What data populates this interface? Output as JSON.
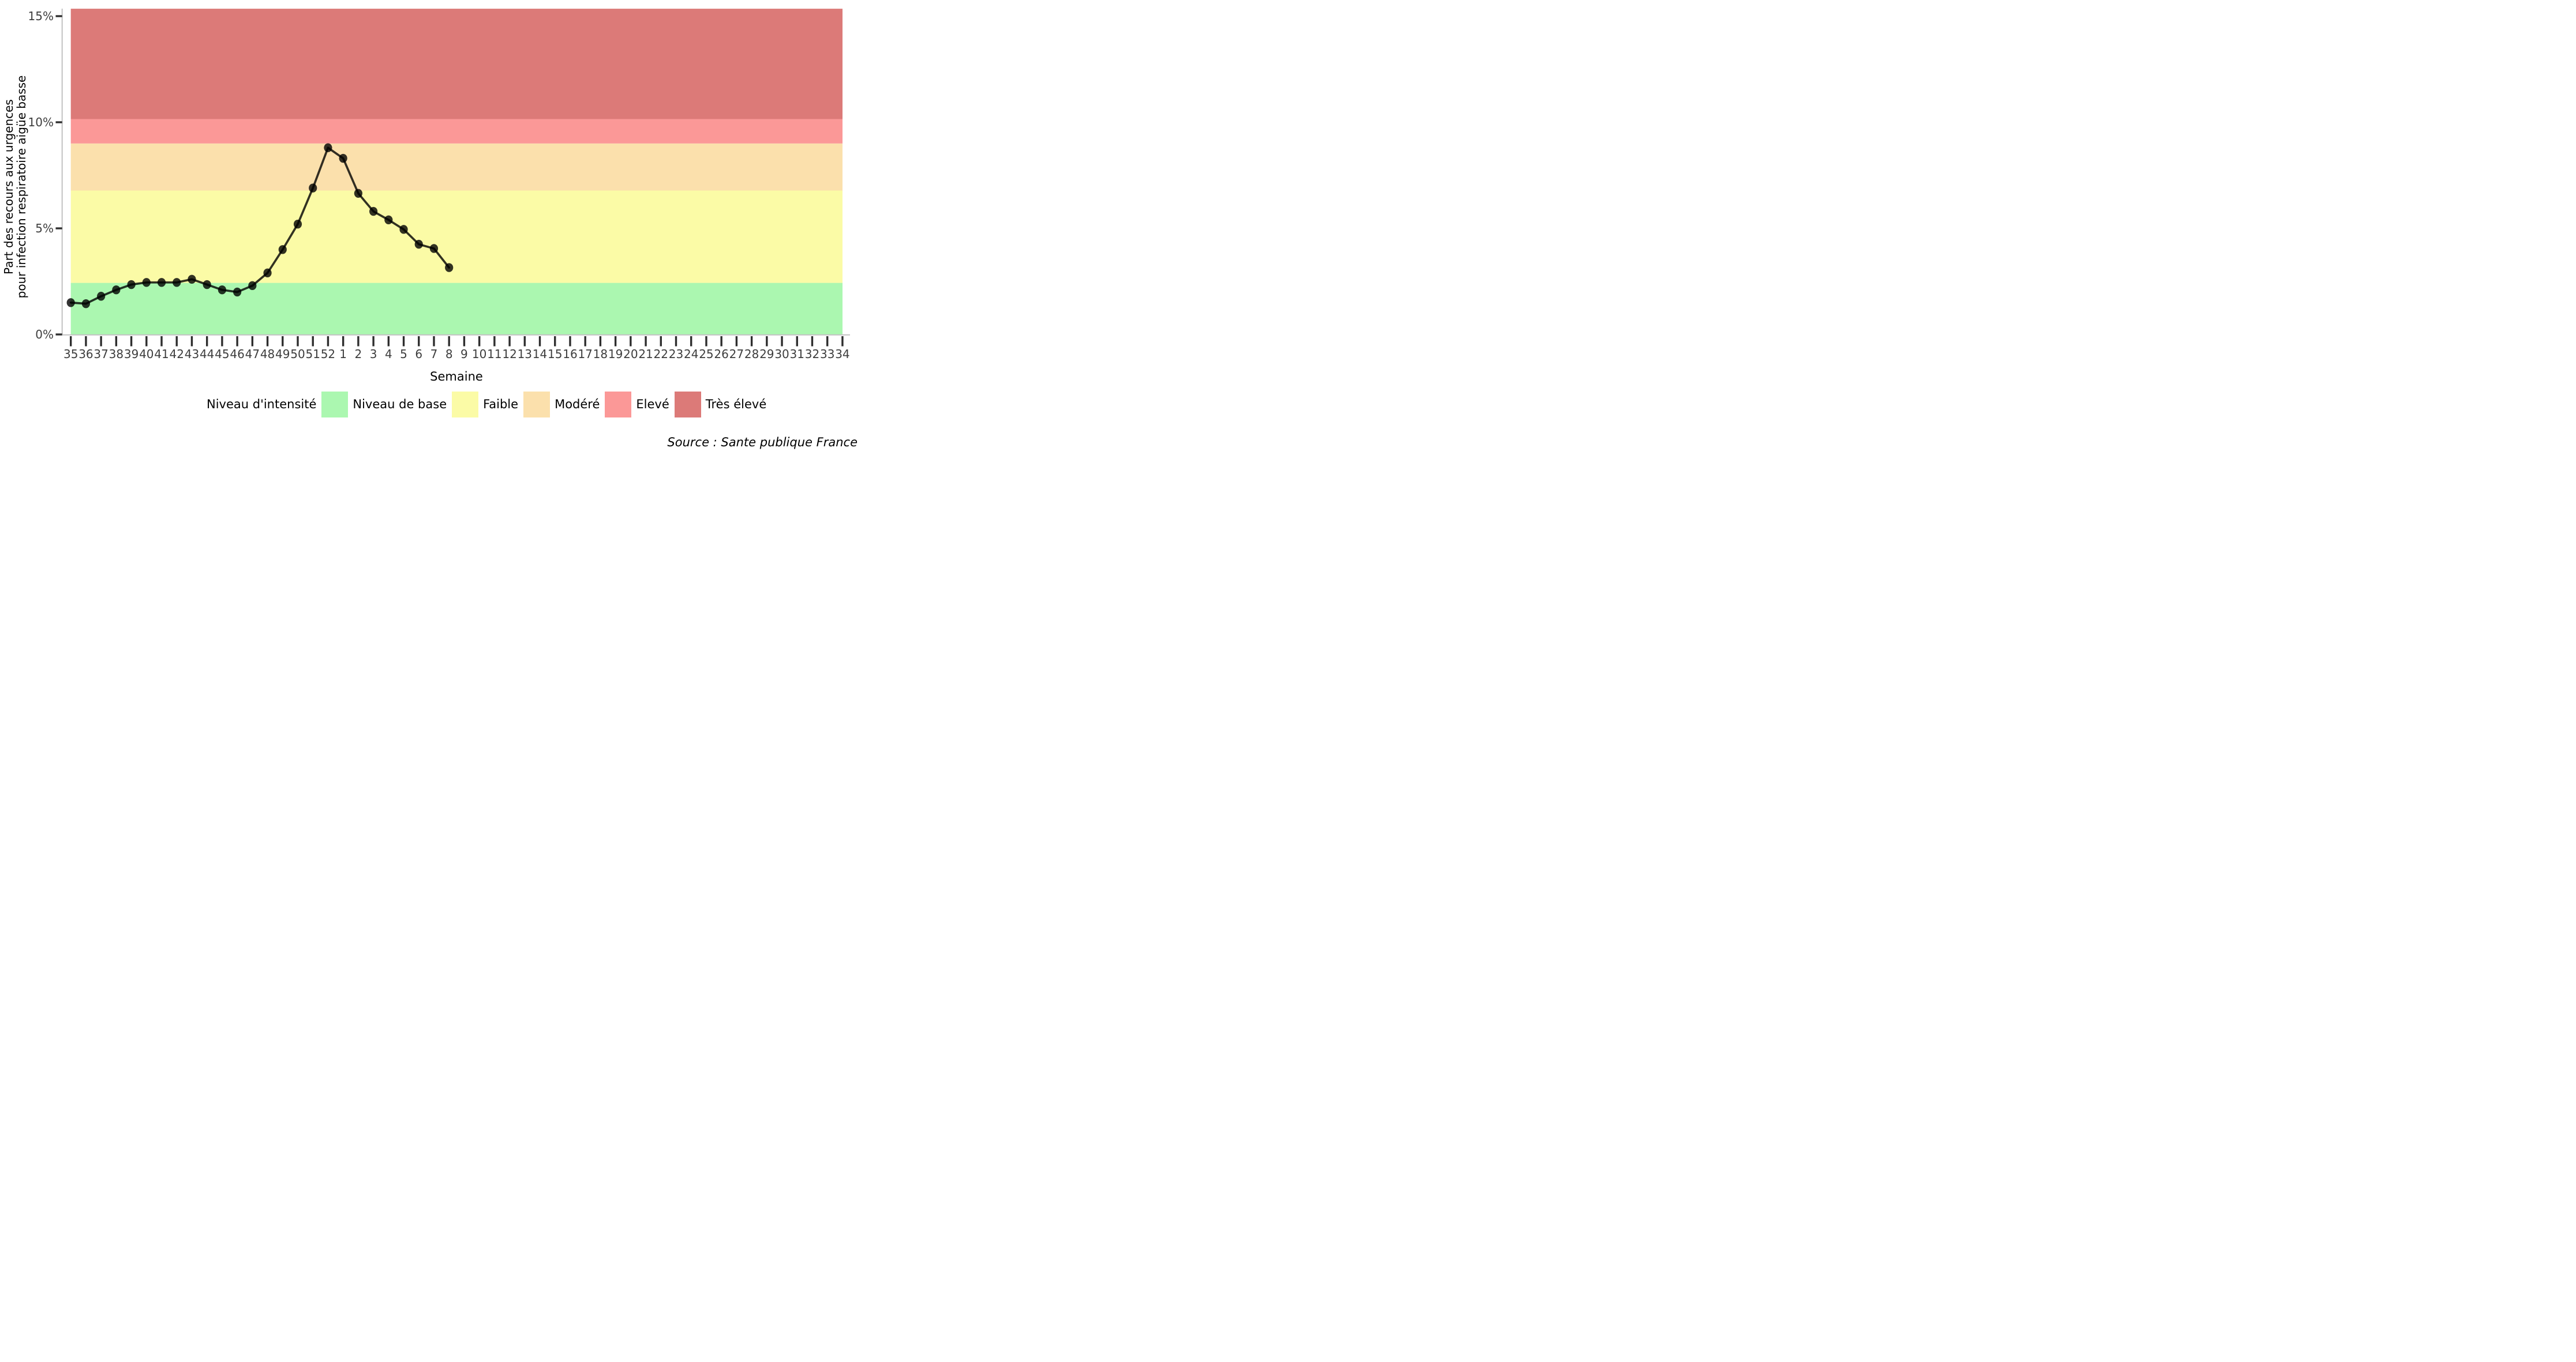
{
  "chart_data": {
    "type": "line",
    "title": "",
    "xlabel": "Semaine",
    "ylabel_lines": [
      "Part des recours aux urgences",
      "pour infection respiratoire aigüe basse"
    ],
    "x_categories": [
      "35",
      "36",
      "37",
      "38",
      "39",
      "40",
      "41",
      "42",
      "43",
      "44",
      "45",
      "46",
      "47",
      "48",
      "49",
      "50",
      "51",
      "52",
      "1",
      "2",
      "3",
      "4",
      "5",
      "6",
      "7",
      "8",
      "9",
      "10",
      "11",
      "12",
      "13",
      "14",
      "15",
      "16",
      "17",
      "18",
      "19",
      "20",
      "21",
      "22",
      "23",
      "24",
      "25",
      "26",
      "27",
      "28",
      "29",
      "30",
      "31",
      "32",
      "33",
      "34"
    ],
    "y_ticks": [
      {
        "label": "0%",
        "value": 0
      },
      {
        "label": "5%",
        "value": 5
      },
      {
        "label": "10%",
        "value": 10
      },
      {
        "label": "15%",
        "value": 15
      }
    ],
    "ylim": [
      0,
      15.35
    ],
    "grid": false,
    "legend_position": "bottom",
    "series": [
      {
        "name": "Part des recours aux urgences pour infection respiratoire aigüe basse (%)",
        "weeks": [
          "35",
          "36",
          "37",
          "38",
          "39",
          "40",
          "41",
          "42",
          "43",
          "44",
          "45",
          "46",
          "47",
          "48",
          "49",
          "50",
          "51",
          "52",
          "1",
          "2",
          "3",
          "4",
          "5",
          "6",
          "7",
          "8"
        ],
        "values": [
          1.5,
          1.45,
          1.8,
          2.1,
          2.35,
          2.45,
          2.45,
          2.45,
          2.6,
          2.35,
          2.1,
          2.0,
          2.3,
          2.9,
          4.0,
          5.2,
          6.9,
          8.8,
          8.3,
          6.65,
          5.8,
          5.4,
          4.95,
          4.25,
          4.05,
          3.15
        ],
        "color": "rgba(0,0,0,0.8)"
      }
    ],
    "bands": [
      {
        "id": "niveau-de-base",
        "label": "Niveau de base",
        "from": 0,
        "to": 2.43,
        "color": "#ABF7B0"
      },
      {
        "id": "faible",
        "label": "Faible",
        "from": 2.43,
        "to": 6.78,
        "color": "#FBFBA6"
      },
      {
        "id": "modere",
        "label": "Modéré",
        "from": 6.78,
        "to": 9.0,
        "color": "#FBE0AC"
      },
      {
        "id": "eleve",
        "label": "Elevé",
        "from": 9.0,
        "to": 10.15,
        "color": "#FB9897"
      },
      {
        "id": "tres-eleve",
        "label": "Très élevé",
        "from": 10.15,
        "to": 15.35,
        "color": "#DC7A78"
      }
    ]
  },
  "legend": {
    "title": "Niveau d'intensité",
    "items": [
      {
        "label": "Niveau de base",
        "color": "#ABF7B0"
      },
      {
        "label": "Faible",
        "color": "#FBFBA6"
      },
      {
        "label": "Modéré",
        "color": "#FBE0AC"
      },
      {
        "label": "Elevé",
        "color": "#FB9897"
      },
      {
        "label": "Très élevé",
        "color": "#DC7A78"
      }
    ]
  },
  "source": {
    "text": "Source : Sante publique France"
  },
  "colors": {
    "axis_line": "#c2c2c2",
    "tick_mark": "#2e2e2e",
    "tick_label": "#3d3d3d",
    "line": "rgba(0,0,0,0.8)"
  }
}
